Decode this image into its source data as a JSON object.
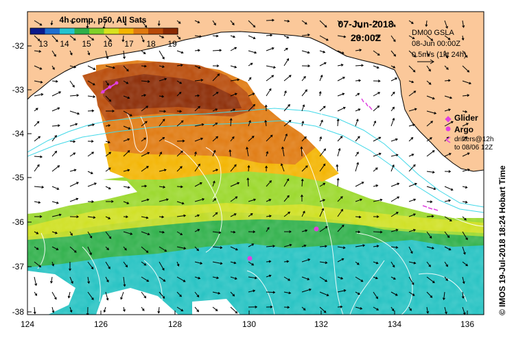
{
  "colorbar": {
    "title": "4h comp, p50, All Sats",
    "ticks": [
      "13",
      "14",
      "15",
      "16",
      "17",
      "18",
      "19"
    ],
    "colors": [
      "#0a1a8c",
      "#1e6fd0",
      "#23c4cf",
      "#2fb04a",
      "#7fd12a",
      "#d8e21e",
      "#f3b400",
      "#e07a10",
      "#b84a08",
      "#8a2a04"
    ]
  },
  "header": {
    "date": "07-Jun-2018",
    "time": "20:00Z"
  },
  "gsla": {
    "title": "DM00 GSLA",
    "date": "08-Jun 00:00Z",
    "scale": "0.5m/s (1kt 24h)"
  },
  "legend": {
    "glider": "Glider",
    "argo": "Argo",
    "drifters_line1": "drifters@12h",
    "drifters_line2": "to 08/06 12Z",
    "glider_color": "#e040e0",
    "argo_color": "#e040e0"
  },
  "axes": {
    "y_ticks": [
      "-32",
      "-33",
      "-34",
      "-35",
      "-36",
      "-37",
      "-38"
    ],
    "x_ticks": [
      "124",
      "126",
      "128",
      "130",
      "132",
      "134",
      "136"
    ]
  },
  "credit": "© IMOS 19-Jul-2018 18:24 Hobart Time",
  "colors": {
    "land": "#fbc89a",
    "coast": "#000000",
    "bathy": "#40d8e8",
    "contour": "#ffffff"
  }
}
